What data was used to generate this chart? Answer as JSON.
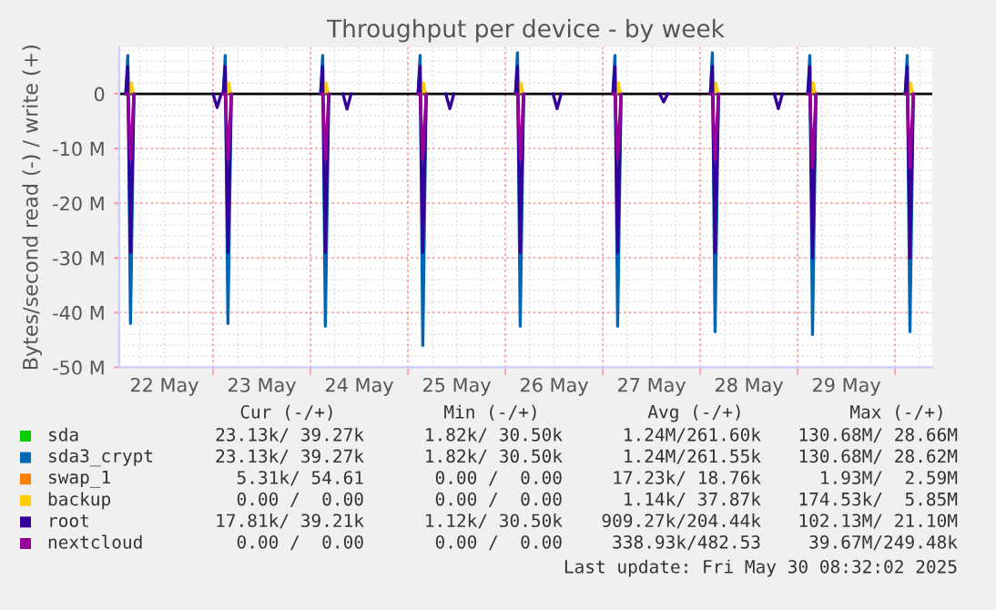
{
  "chart_data": {
    "type": "line",
    "title": "Throughput per device - by week",
    "ylabel": "Bytes/second read (-) / write (+)",
    "xlim": [
      "2025-05-22T00:54",
      "2025-05-30T09:10"
    ],
    "xticks": [
      {
        "value": "2025-05-22T12:00",
        "label": "22 May"
      },
      {
        "value": "2025-05-23T12:00",
        "label": "23 May"
      },
      {
        "value": "2025-05-24T12:00",
        "label": "24 May"
      },
      {
        "value": "2025-05-25T12:00",
        "label": "25 May"
      },
      {
        "value": "2025-05-26T12:00",
        "label": "26 May"
      },
      {
        "value": "2025-05-27T12:00",
        "label": "27 May"
      },
      {
        "value": "2025-05-28T12:00",
        "label": "28 May"
      },
      {
        "value": "2025-05-29T12:00",
        "label": "29 May"
      },
      {
        "value": "2025-05-23T00:00",
        "label": null
      },
      {
        "value": "2025-05-24T00:00",
        "label": null
      },
      {
        "value": "2025-05-25T00:00",
        "label": null
      },
      {
        "value": "2025-05-26T00:00",
        "label": null
      },
      {
        "value": "2025-05-27T00:00",
        "label": null
      },
      {
        "value": "2025-05-28T00:00",
        "label": null
      },
      {
        "value": "2025-05-29T00:00",
        "label": null
      },
      {
        "value": "2025-05-30T00:00",
        "label": null
      }
    ],
    "ylim": [
      -50000000,
      8500000
    ],
    "yticks": [
      {
        "value": 0,
        "label": "0"
      },
      {
        "value": -10000000,
        "label": "-10 M"
      },
      {
        "value": -20000000,
        "label": "-20 M"
      },
      {
        "value": -30000000,
        "label": "-30 M"
      },
      {
        "value": -40000000,
        "label": "-40 M"
      },
      {
        "value": -50000000,
        "label": "-50 M"
      }
    ],
    "grid": true,
    "legend": "bottom",
    "marker": "none",
    "line_style": "solid",
    "ref_lines": [
      {
        "axis": "y",
        "value": 0,
        "label": null,
        "color": "#000000"
      }
    ],
    "x": [
      "2025-05-22T02:30",
      "2025-05-22T03:00",
      "2025-05-22T03:40",
      "2025-05-22T04:30",
      "2025-05-22T05:00",
      "2025-05-23T02:30",
      "2025-05-23T03:00",
      "2025-05-23T03:40",
      "2025-05-23T04:30",
      "2025-05-23T05:00",
      "2025-05-24T02:30",
      "2025-05-24T03:00",
      "2025-05-24T03:40",
      "2025-05-24T04:30",
      "2025-05-24T05:00",
      "2025-05-25T02:30",
      "2025-05-25T03:00",
      "2025-05-25T03:40",
      "2025-05-25T04:30",
      "2025-05-25T05:00",
      "2025-05-26T02:30",
      "2025-05-26T03:00",
      "2025-05-26T03:40",
      "2025-05-26T04:30",
      "2025-05-26T05:00",
      "2025-05-27T02:30",
      "2025-05-27T03:00",
      "2025-05-27T03:40",
      "2025-05-27T04:30",
      "2025-05-27T05:00",
      "2025-05-28T02:30",
      "2025-05-28T03:00",
      "2025-05-28T03:40",
      "2025-05-28T04:30",
      "2025-05-28T05:00",
      "2025-05-29T02:30",
      "2025-05-29T03:00",
      "2025-05-29T03:40",
      "2025-05-29T04:30",
      "2025-05-29T05:00",
      "2025-05-30T02:30",
      "2025-05-30T03:00",
      "2025-05-30T03:40",
      "2025-05-30T04:30"
    ],
    "series": [
      {
        "name": "sda",
        "color": "#00cc00",
        "values": [
          null,
          null,
          null,
          null,
          null,
          null,
          null,
          null,
          null,
          null,
          null,
          null,
          null,
          null,
          null,
          null,
          null,
          null,
          null,
          null,
          null,
          null,
          null,
          null,
          null,
          null,
          null,
          null,
          null,
          null,
          null,
          null,
          null,
          null,
          null,
          null,
          null,
          null,
          null,
          null,
          null,
          null,
          null,
          null
        ]
      },
      {
        "name": "sda3_crypt",
        "color": "#0066b3",
        "values": [
          0,
          7000000,
          -42000000,
          0,
          null,
          0,
          7000000,
          -42000000,
          0,
          null,
          0,
          7000000,
          -42500000,
          0,
          null,
          0,
          7000000,
          -46000000,
          0,
          null,
          0,
          7500000,
          -42500000,
          0,
          null,
          0,
          7000000,
          -42500000,
          0,
          null,
          0,
          7500000,
          -43500000,
          0,
          null,
          0,
          7000000,
          -44000000,
          0,
          null,
          0,
          7000000,
          -43500000,
          0
        ]
      },
      {
        "name": "swap_1",
        "color": "#ff8000",
        "values": [
          null,
          null,
          null,
          null,
          null,
          null,
          null,
          null,
          null,
          null,
          null,
          null,
          null,
          null,
          null,
          null,
          null,
          null,
          null,
          null,
          null,
          null,
          null,
          null,
          null,
          null,
          null,
          null,
          null,
          null,
          null,
          null,
          null,
          null,
          null,
          null,
          null,
          null,
          null,
          null,
          null,
          null,
          null,
          null
        ]
      },
      {
        "name": "backup",
        "color": "#ffcc00",
        "x": [
          "2025-05-22T03:20",
          "2025-05-22T03:50",
          "2025-05-22T04:20",
          "2025-05-22T05:00",
          "2025-05-23T03:20",
          "2025-05-23T03:50",
          "2025-05-23T04:20",
          "2025-05-23T05:00",
          "2025-05-24T03:20",
          "2025-05-24T03:50",
          "2025-05-24T04:20",
          "2025-05-24T05:00",
          "2025-05-25T03:20",
          "2025-05-25T03:50",
          "2025-05-25T04:20",
          "2025-05-25T05:00",
          "2025-05-26T03:20",
          "2025-05-26T03:50",
          "2025-05-26T04:20",
          "2025-05-26T05:00",
          "2025-05-27T03:20",
          "2025-05-27T03:50",
          "2025-05-27T04:20",
          "2025-05-27T05:00",
          "2025-05-28T03:20",
          "2025-05-28T03:50",
          "2025-05-28T04:20",
          "2025-05-28T05:00",
          "2025-05-29T03:20",
          "2025-05-29T03:50",
          "2025-05-29T04:20",
          "2025-05-29T05:00",
          "2025-05-30T03:20",
          "2025-05-30T03:50",
          "2025-05-30T04:20"
        ],
        "values": [
          0,
          2000000,
          0,
          null,
          0,
          2000000,
          0,
          null,
          0,
          2000000,
          0,
          null,
          0,
          2000000,
          0,
          null,
          0,
          2000000,
          0,
          null,
          0,
          2000000,
          0,
          null,
          0,
          2000000,
          0,
          null,
          0,
          2000000,
          0,
          null,
          0,
          2000000,
          0
        ]
      },
      {
        "name": "root",
        "color": "#330099",
        "x": [
          "2025-05-22T02:30",
          "2025-05-22T03:00",
          "2025-05-22T03:40",
          "2025-05-22T04:30",
          "2025-05-22T05:00",
          "2025-05-23T00:00",
          "2025-05-23T01:00",
          "2025-05-23T02:00",
          "2025-05-23T02:30",
          "2025-05-23T03:00",
          "2025-05-23T03:40",
          "2025-05-23T04:30",
          "2025-05-23T05:00",
          "2025-05-24T02:30",
          "2025-05-24T03:00",
          "2025-05-24T03:40",
          "2025-05-24T04:30",
          "2025-05-24T05:00",
          "2025-05-24T08:00",
          "2025-05-24T09:00",
          "2025-05-24T10:00",
          "2025-05-24T10:30",
          "2025-05-25T02:30",
          "2025-05-25T03:00",
          "2025-05-25T03:40",
          "2025-05-25T04:30",
          "2025-05-25T05:00",
          "2025-05-25T09:20",
          "2025-05-25T10:20",
          "2025-05-25T11:20",
          "2025-05-25T11:40",
          "2025-05-26T02:30",
          "2025-05-26T03:00",
          "2025-05-26T03:40",
          "2025-05-26T04:30",
          "2025-05-26T05:00",
          "2025-05-26T11:45",
          "2025-05-26T12:45",
          "2025-05-26T13:45",
          "2025-05-26T14:00",
          "2025-05-27T02:30",
          "2025-05-27T03:00",
          "2025-05-27T03:40",
          "2025-05-27T04:30",
          "2025-05-27T05:00",
          "2025-05-27T14:00",
          "2025-05-27T15:00",
          "2025-05-27T16:00",
          "2025-05-27T16:30",
          "2025-05-28T02:30",
          "2025-05-28T03:00",
          "2025-05-28T03:40",
          "2025-05-28T04:30",
          "2025-05-28T05:00",
          "2025-05-28T18:15",
          "2025-05-28T19:15",
          "2025-05-28T20:15",
          "2025-05-28T20:30",
          "2025-05-29T02:30",
          "2025-05-29T03:00",
          "2025-05-29T03:40",
          "2025-05-29T04:30",
          "2025-05-29T05:00",
          "2025-05-30T02:30",
          "2025-05-30T03:00",
          "2025-05-30T03:40",
          "2025-05-30T04:30"
        ],
        "values": [
          0,
          5000000,
          -29000000,
          0,
          null,
          0,
          -2500000,
          0,
          0,
          5000000,
          -29000000,
          0,
          null,
          0,
          5000000,
          -29000000,
          0,
          null,
          0,
          -2800000,
          0,
          null,
          0,
          5000000,
          -29000000,
          0,
          null,
          0,
          -2700000,
          0,
          null,
          0,
          5000000,
          -29000000,
          0,
          null,
          0,
          -2700000,
          0,
          null,
          0,
          5000000,
          -29000000,
          0,
          null,
          0,
          -1500000,
          0,
          null,
          0,
          5000000,
          -29000000,
          0,
          null,
          0,
          -2700000,
          0,
          null,
          0,
          5000000,
          -30000000,
          0,
          null,
          0,
          5000000,
          -30000000,
          0
        ]
      },
      {
        "name": "nextcloud",
        "color": "#990099",
        "values": [
          0,
          0,
          -12000000,
          0,
          null,
          0,
          0,
          -12000000,
          0,
          null,
          0,
          0,
          -12000000,
          0,
          null,
          0,
          0,
          -12000000,
          0,
          null,
          0,
          0,
          -12000000,
          0,
          null,
          0,
          0,
          -12000000,
          0,
          null,
          0,
          0,
          -12000000,
          0,
          null,
          0,
          0,
          -13500000,
          0,
          null,
          0,
          0,
          -13500000,
          0
        ]
      }
    ],
    "annotations": [
      "Cur (-/+)",
      "Min (-/+)",
      "Avg (-/+)",
      "Max (-/+)",
      "23.13k/ 39.27k",
      "1.82k/ 30.50k",
      "1.24M/261.60k",
      "130.68M/ 28.66M",
      "23.13k/ 39.27k",
      "1.82k/ 30.50k",
      "1.24M/261.55k",
      "130.68M/ 28.62M",
      "5.31k/ 54.61",
      "0.00 /  0.00",
      "17.23k/ 18.76k",
      "1.93M/  2.59M",
      "0.00 /  0.00",
      "0.00 /  0.00",
      "1.14k/ 37.87k",
      "174.53k/  5.85M",
      "17.81k/ 39.21k",
      "1.12k/ 30.50k",
      "909.27k/204.44k",
      "102.13M/ 21.10M",
      "0.00 /  0.00",
      "0.00 /  0.00",
      "338.93k/482.53",
      "39.67M/249.48k",
      "Last update: Fri May 30 08:32:02 2025"
    ]
  }
}
